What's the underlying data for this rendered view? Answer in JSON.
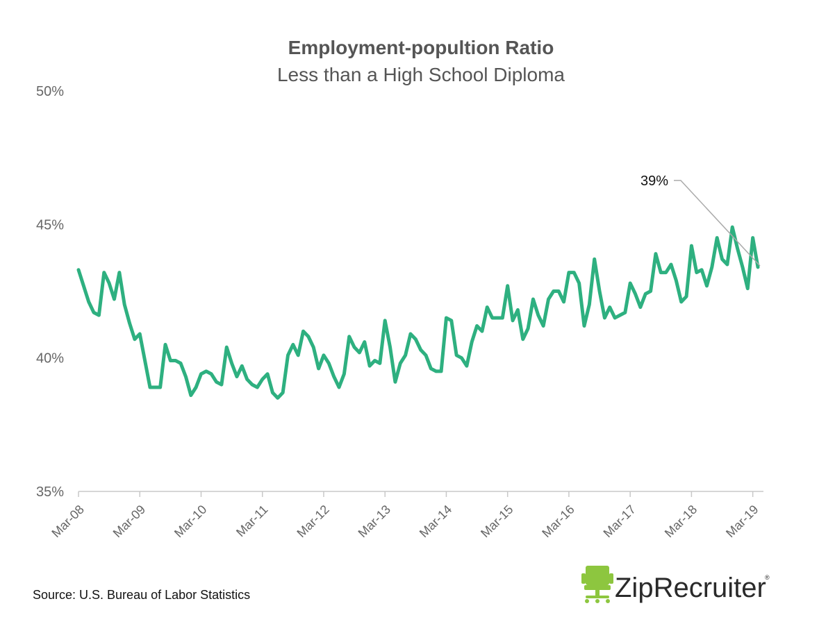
{
  "chart_data": {
    "type": "line",
    "title": "Employment-popultion Ratio",
    "subtitle": "Less than a High School Diploma",
    "x_tick_labels": [
      "Mar-08",
      "Mar-09",
      "Mar-10",
      "Mar-11",
      "Mar-12",
      "Mar-13",
      "Mar-14",
      "Mar-15",
      "Mar-16",
      "Mar-17",
      "Mar-18",
      "Mar-19"
    ],
    "y_tick_labels": [
      "50%",
      "45%",
      "40%",
      "35%"
    ],
    "ylim": [
      35,
      50
    ],
    "grid": false,
    "legend": "none",
    "line_color": "#2eb080",
    "annotation": {
      "text": "39%"
    },
    "series": [
      {
        "start": "2008-03",
        "frequency": "monthly",
        "values": [
          43.3,
          42.7,
          42.1,
          41.7,
          41.6,
          43.2,
          42.8,
          42.2,
          43.2,
          42.0,
          41.3,
          40.7,
          40.9,
          39.9,
          38.9,
          38.9,
          38.9,
          40.5,
          39.9,
          39.9,
          39.8,
          39.3,
          38.6,
          38.9,
          39.4,
          39.5,
          39.4,
          39.1,
          39.0,
          40.4,
          39.8,
          39.3,
          39.7,
          39.2,
          39.0,
          38.9,
          39.2,
          39.4,
          38.7,
          38.5,
          38.7,
          40.1,
          40.5,
          40.1,
          41.0,
          40.8,
          40.4,
          39.6,
          40.1,
          39.8,
          39.3,
          38.9,
          39.4,
          40.8,
          40.4,
          40.2,
          40.6,
          39.7,
          39.9,
          39.8,
          41.4,
          40.4,
          39.1,
          39.8,
          40.1,
          40.9,
          40.7,
          40.3,
          40.1,
          39.6,
          39.5,
          39.5,
          41.5,
          41.4,
          40.1,
          40.0,
          39.7,
          40.6,
          41.2,
          41.0,
          41.9,
          41.5,
          41.5,
          41.5,
          42.7,
          41.4,
          41.8,
          40.7,
          41.1,
          42.2,
          41.6,
          41.2,
          42.2,
          42.5,
          42.5,
          42.1,
          43.2,
          43.2,
          42.8,
          41.2,
          42.0,
          43.7,
          42.5,
          41.5,
          41.9,
          41.5,
          41.6,
          41.7,
          42.8,
          42.4,
          41.9,
          42.4,
          42.5,
          43.9,
          43.2,
          43.2,
          43.5,
          42.9,
          42.1,
          42.3,
          44.2,
          43.2,
          43.3,
          42.7,
          43.4,
          44.5,
          43.7,
          43.5,
          44.9,
          44.1,
          43.4,
          42.6,
          44.5,
          43.4
        ]
      }
    ]
  },
  "source": "Source: U.S. Bureau of Labor Statistics",
  "logo": {
    "text": "ZipRecruiter",
    "registered": "®",
    "icon": "office-chair-icon",
    "color": "#8dc63f"
  }
}
